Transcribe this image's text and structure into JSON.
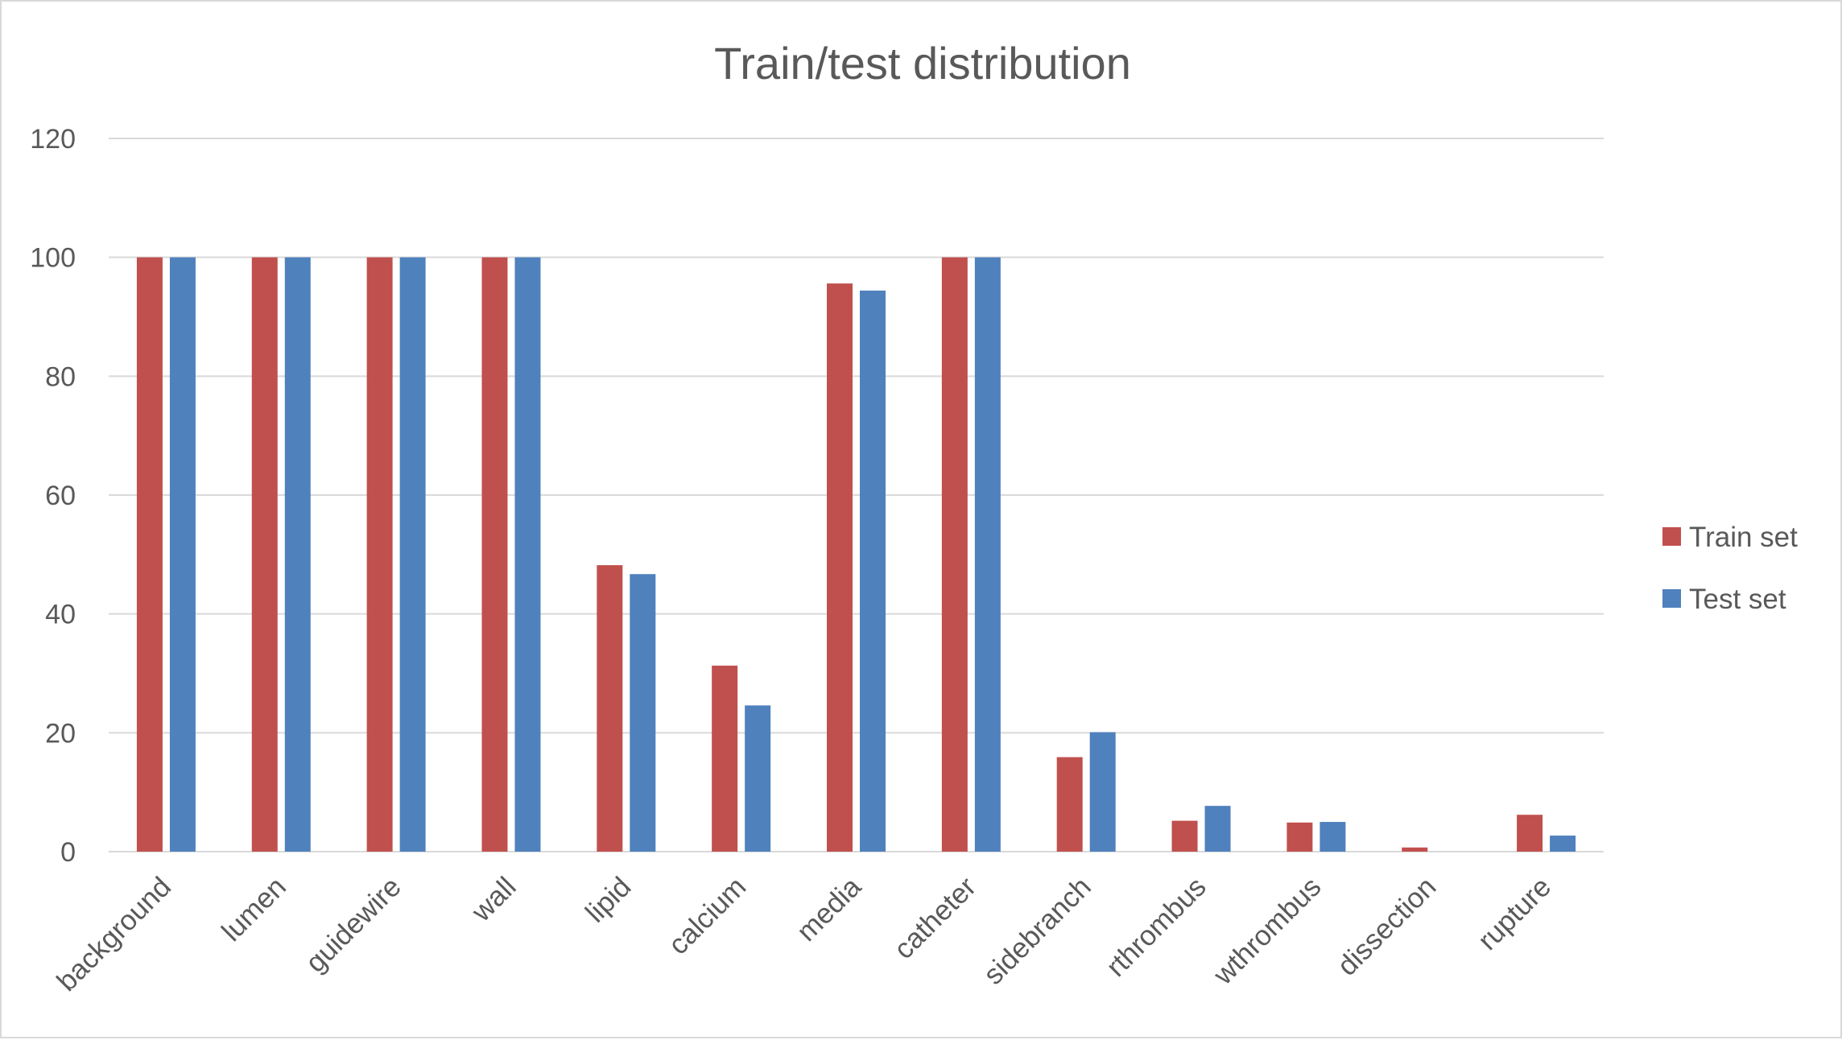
{
  "chart_data": {
    "type": "bar",
    "title": "Train/test distribution",
    "xlabel": "",
    "ylabel": "",
    "categories": [
      "background",
      "lumen",
      "guidewire",
      "wall",
      "lipid",
      "calcium",
      "media",
      "catheter",
      "sidebranch",
      "rthrombus",
      "wthrombus",
      "dissection",
      "rupture"
    ],
    "series": [
      {
        "name": "Train set",
        "color": "#c0504d",
        "values": [
          100,
          100,
          100,
          100,
          48.2,
          31.3,
          95.6,
          100,
          15.9,
          5.2,
          4.9,
          0.7,
          6.2
        ]
      },
      {
        "name": "Test set",
        "color": "#4f81bd",
        "values": [
          100,
          100,
          100,
          100,
          46.7,
          24.6,
          94.4,
          100,
          20.1,
          7.7,
          5.0,
          0,
          2.7
        ]
      }
    ],
    "ylim": [
      0,
      120
    ],
    "yticks": [
      0,
      20,
      40,
      60,
      80,
      100,
      120
    ],
    "grid": true,
    "legend_position": "right"
  }
}
